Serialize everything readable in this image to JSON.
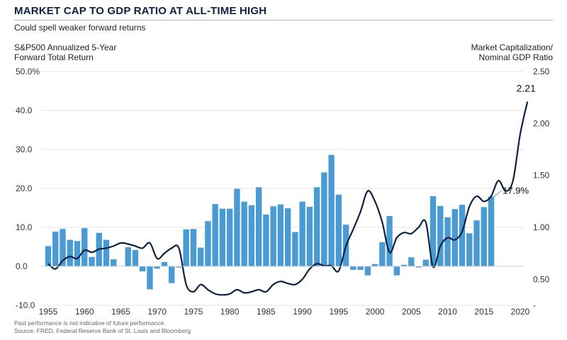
{
  "title": "MARKET CAP TO GDP RATIO AT ALL-TIME HIGH",
  "subtitle": "Could spell weaker forward returns",
  "left_axis_label_line1": "S&P500 Annualized 5-Year",
  "left_axis_label_line2": "Forward Total Return",
  "right_axis_label_line1": "Market Capitalization/",
  "right_axis_label_line2": "Nominal GDP Ratio",
  "footnote": "Past performance is not indicative of future performance.",
  "source": "Source: FRED, Federal Reserve Bank of St. Louis and Bloomberg",
  "colors": {
    "bar": "#4a9bd3",
    "line": "#0d2240",
    "title": "#0d2240"
  },
  "chart_data": {
    "type": "bar+line",
    "x_ticks": [
      "1955",
      "1960",
      "1965",
      "1970",
      "1975",
      "1980",
      "1985",
      "1990",
      "1995",
      "2000",
      "2005",
      "2010",
      "2015",
      "2020"
    ],
    "x_range": [
      1955,
      2020
    ],
    "left_axis": {
      "ticks": [
        "50.0%",
        "40.0",
        "30.0",
        "20.0",
        "10.0",
        "0.0",
        "-10.0"
      ],
      "tick_values": [
        50,
        40,
        30,
        20,
        10,
        0,
        -10
      ],
      "range": [
        -10,
        50
      ]
    },
    "right_axis": {
      "ticks": [
        "2.50",
        "2.00",
        "1.50",
        "1.00",
        "0.50",
        "-"
      ],
      "tick_values": [
        2.5,
        2.0,
        1.5,
        1.0,
        0.5,
        0.25
      ],
      "range": [
        0.25,
        2.5
      ]
    },
    "series": [
      {
        "name": "S&P500 Annualized 5-Year Forward Total Return",
        "kind": "bar",
        "axis": "left",
        "x": [
          1955,
          1956,
          1957,
          1958,
          1959,
          1960,
          1961,
          1962,
          1963,
          1964,
          1965,
          1966,
          1967,
          1968,
          1969,
          1970,
          1971,
          1972,
          1973,
          1974,
          1975,
          1976,
          1977,
          1978,
          1979,
          1980,
          1981,
          1982,
          1983,
          1984,
          1985,
          1986,
          1987,
          1988,
          1989,
          1990,
          1991,
          1992,
          1993,
          1994,
          1995,
          1996,
          1997,
          1998,
          1999,
          2000,
          2001,
          2002,
          2003,
          2004,
          2005,
          2006,
          2007,
          2008,
          2009,
          2010,
          2011,
          2012,
          2013,
          2014,
          2015,
          2016
        ],
        "values": [
          5.2,
          8.9,
          9.6,
          6.8,
          6.5,
          9.8,
          2.4,
          8.6,
          6.8,
          1.8,
          0.1,
          4.9,
          4.2,
          -1.3,
          -5.9,
          -0.6,
          1.1,
          -4.3,
          -0.3,
          9.5,
          9.6,
          4.8,
          11.6,
          16.0,
          14.8,
          14.8,
          19.9,
          16.6,
          15.7,
          20.3,
          13.3,
          15.4,
          15.9,
          14.9,
          8.8,
          16.6,
          15.3,
          20.3,
          24.1,
          28.6,
          18.4,
          10.7,
          -0.9,
          -0.9,
          -2.3,
          0.6,
          6.2,
          12.9,
          -2.3,
          0.4,
          2.3,
          -0.3,
          1.7,
          18.0,
          15.5,
          12.6,
          14.7,
          15.8,
          8.5,
          11.8,
          15.2,
          17.9
        ]
      },
      {
        "name": "Market Capitalization/Nominal GDP Ratio",
        "kind": "line",
        "axis": "right",
        "x": [
          1955,
          1956,
          1957,
          1958,
          1959,
          1960,
          1961,
          1962,
          1963,
          1964,
          1965,
          1966,
          1967,
          1968,
          1969,
          1970,
          1971,
          1972,
          1973,
          1974,
          1975,
          1976,
          1977,
          1978,
          1979,
          1980,
          1981,
          1982,
          1983,
          1984,
          1985,
          1986,
          1987,
          1988,
          1989,
          1990,
          1991,
          1992,
          1993,
          1994,
          1995,
          1996,
          1997,
          1998,
          1999,
          2000,
          2001,
          2002,
          2003,
          2004,
          2005,
          2006,
          2007,
          2008,
          2009,
          2010,
          2011,
          2012,
          2013,
          2014,
          2015,
          2016,
          2017,
          2018,
          2019,
          2020,
          2021
        ],
        "values": [
          0.65,
          0.6,
          0.68,
          0.72,
          0.7,
          0.78,
          0.76,
          0.79,
          0.8,
          0.82,
          0.85,
          0.84,
          0.82,
          0.8,
          0.85,
          0.7,
          0.75,
          0.8,
          0.8,
          0.45,
          0.38,
          0.45,
          0.4,
          0.36,
          0.35,
          0.36,
          0.4,
          0.37,
          0.38,
          0.4,
          0.38,
          0.45,
          0.48,
          0.46,
          0.45,
          0.5,
          0.6,
          0.65,
          0.63,
          0.63,
          0.58,
          0.82,
          0.98,
          1.15,
          1.35,
          1.25,
          1.05,
          0.76,
          0.9,
          0.95,
          0.94,
          1.0,
          1.05,
          0.62,
          0.82,
          0.9,
          0.88,
          0.96,
          1.2,
          1.3,
          1.25,
          1.3,
          1.45,
          1.35,
          1.45,
          1.9,
          2.21
        ]
      }
    ],
    "annotations": [
      {
        "text": "2.21",
        "series": "Market Capitalization/Nominal GDP Ratio",
        "x": 2021
      },
      {
        "text": "17.9%",
        "series": "S&P500 Annualized 5-Year Forward Total Return",
        "x": 2016
      }
    ]
  }
}
